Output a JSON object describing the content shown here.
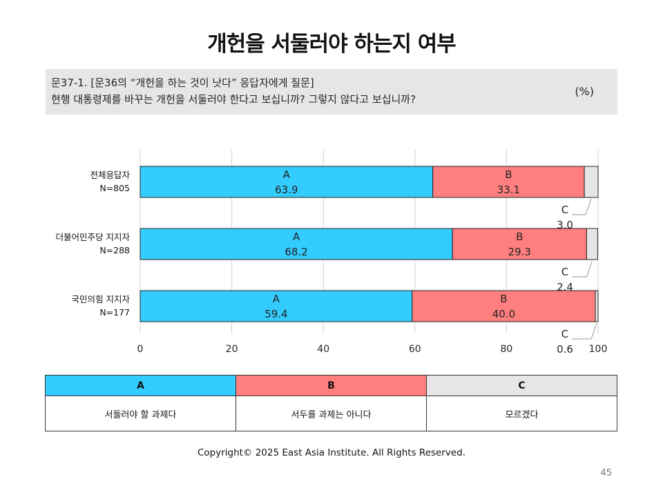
{
  "title": "개헌을 서둘러야 하는지 여부",
  "question": {
    "line1": "문37-1. [문36의 “개헌을 하는 것이 낫다” 응답자에게 질문]",
    "line2": "현행 대통령제를 바꾸는 개헌을 서둘러야 한다고 보십니까? 그렇지 않다고 보십니까?",
    "unit": "(%)"
  },
  "chart_data": {
    "type": "bar",
    "orientation": "horizontal",
    "stacked": true,
    "categories": [
      "전체응답자",
      "더불어민주당  지지자",
      "국민의힘 지지자"
    ],
    "sample_sizes": [
      "N=805",
      "N=288",
      "N=177"
    ],
    "series": [
      {
        "name": "A",
        "color": "#33ccff",
        "values": [
          63.9,
          68.2,
          59.4
        ]
      },
      {
        "name": "B",
        "color": "#ff7f7f",
        "values": [
          33.1,
          29.3,
          40.0
        ]
      },
      {
        "name": "C",
        "color": "#e6e6e6",
        "values": [
          3.0,
          2.4,
          0.6
        ]
      }
    ],
    "xlim": [
      0,
      100
    ],
    "xticks": [
      0,
      20,
      40,
      60,
      80,
      100
    ],
    "grid": true
  },
  "legend": {
    "headers": [
      "A",
      "B",
      "C"
    ],
    "descriptions": [
      "서둘러야 할 과제다",
      "서두를 과제는 아니다",
      "모르겠다"
    ]
  },
  "footer": {
    "copyright": "Copyright© 2025 East Asia Institute. All Rights Reserved.",
    "page_number": "45"
  }
}
